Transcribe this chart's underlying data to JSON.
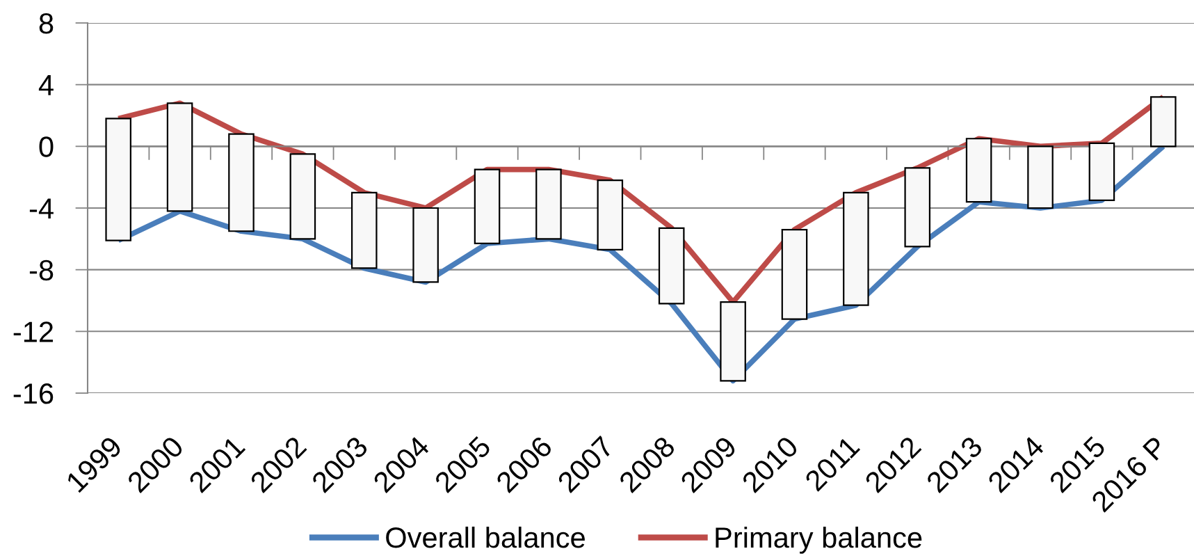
{
  "chart_data": {
    "type": "line",
    "categories": [
      "1999",
      "2000",
      "2001",
      "2002",
      "2003",
      "2004",
      "2005",
      "2006",
      "2007",
      "2008",
      "2009",
      "2010",
      "2011",
      "2012",
      "2013",
      "2014",
      "2015",
      "2016 P"
    ],
    "series": [
      {
        "name": "Overall balance",
        "color": "#4a7ebb",
        "values": [
          -6.1,
          -4.2,
          -5.5,
          -6.0,
          -7.9,
          -8.8,
          -6.3,
          -6.0,
          -6.7,
          -10.2,
          -15.2,
          -11.2,
          -10.3,
          -6.5,
          -3.6,
          -4.0,
          -3.5,
          0.0
        ]
      },
      {
        "name": "Primary balance",
        "color": "#be4b48",
        "values": [
          1.8,
          2.8,
          0.8,
          -0.5,
          -3.0,
          -4.0,
          -1.5,
          -1.5,
          -2.2,
          -5.3,
          -10.1,
          -5.4,
          -3.0,
          -1.4,
          0.5,
          0.0,
          0.2,
          3.2
        ]
      },
      {
        "type": "bar",
        "color": "#f8f8f8",
        "base": [
          -6.1,
          -4.2,
          -5.5,
          -6.0,
          -7.9,
          -8.8,
          -6.3,
          -6.0,
          -6.7,
          -10.2,
          -15.2,
          -11.2,
          -10.3,
          -6.5,
          -3.6,
          -4.0,
          -3.5,
          0.0
        ],
        "values": [
          7.9,
          7.0,
          6.3,
          5.5,
          4.9,
          4.8,
          4.8,
          4.5,
          4.5,
          4.9,
          5.1,
          5.8,
          7.3,
          5.1,
          4.1,
          4.0,
          3.7,
          3.2
        ]
      }
    ],
    "ylim": [
      -16,
      8
    ],
    "yticks": [
      -16,
      -12,
      -8,
      -4,
      0,
      4,
      8
    ],
    "grid": "y",
    "legend": "bottom",
    "line_style": "solid"
  }
}
